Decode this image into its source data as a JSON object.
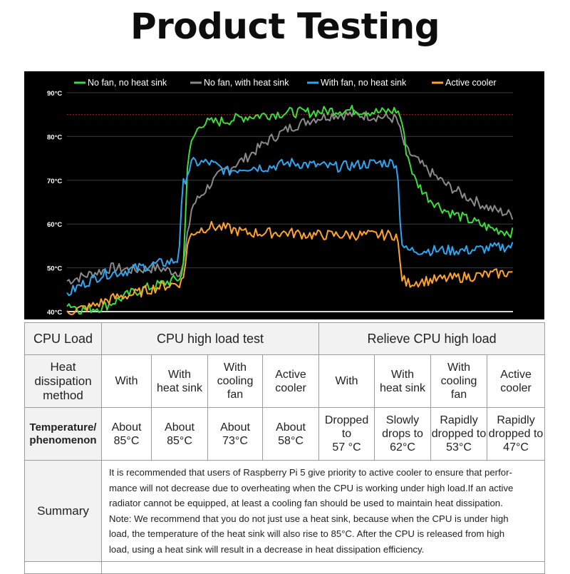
{
  "page": {
    "title": "Product Testing"
  },
  "chart_data": {
    "type": "line",
    "ylim": [
      40,
      90
    ],
    "yticks": [
      "40°C",
      "50°C",
      "60°C",
      "70°C",
      "80°C",
      "90°C"
    ],
    "threshold_line": 85,
    "grid": true,
    "legend_position": "top",
    "series": [
      {
        "name": "No fan, no heat sink",
        "color": "#3ddc3d",
        "points": [
          [
            0,
            42
          ],
          [
            3,
            40.5
          ],
          [
            8,
            41
          ],
          [
            15,
            44.5
          ],
          [
            20,
            46
          ],
          [
            25,
            47.5
          ],
          [
            26,
            48.5
          ],
          [
            27,
            73
          ],
          [
            28,
            79
          ],
          [
            30,
            83
          ],
          [
            35,
            83.5
          ],
          [
            40,
            84.5
          ],
          [
            45,
            85
          ],
          [
            50,
            85.5
          ],
          [
            55,
            85.5
          ],
          [
            60,
            86
          ],
          [
            65,
            86
          ],
          [
            70,
            85.5
          ],
          [
            74,
            86
          ],
          [
            75,
            84
          ],
          [
            76,
            77
          ],
          [
            78,
            70
          ],
          [
            81,
            66
          ],
          [
            85,
            63
          ],
          [
            90,
            61
          ],
          [
            95,
            59
          ],
          [
            100,
            58
          ]
        ]
      },
      {
        "name": "No fan, with heat sink",
        "color": "#8a8a8a",
        "points": [
          [
            0,
            47
          ],
          [
            5,
            48.5
          ],
          [
            10,
            50
          ],
          [
            15,
            49.5
          ],
          [
            20,
            50
          ],
          [
            25,
            49
          ],
          [
            26,
            50
          ],
          [
            28,
            64
          ],
          [
            32,
            69
          ],
          [
            35,
            72
          ],
          [
            40,
            75
          ],
          [
            45,
            79
          ],
          [
            50,
            82
          ],
          [
            55,
            84
          ],
          [
            60,
            85
          ],
          [
            65,
            85
          ],
          [
            70,
            84.5
          ],
          [
            74,
            84
          ],
          [
            75,
            80
          ],
          [
            76,
            77
          ],
          [
            80,
            73
          ],
          [
            85,
            69
          ],
          [
            90,
            66
          ],
          [
            95,
            63.5
          ],
          [
            100,
            62
          ]
        ]
      },
      {
        "name": "With fan, no heat sink",
        "color": "#2ea6f2",
        "points": [
          [
            0,
            44
          ],
          [
            3,
            46
          ],
          [
            8,
            48.5
          ],
          [
            12,
            49
          ],
          [
            18,
            50.5
          ],
          [
            24,
            51.5
          ],
          [
            25,
            52
          ],
          [
            26,
            69
          ],
          [
            28,
            74
          ],
          [
            32,
            74
          ],
          [
            36,
            72
          ],
          [
            40,
            73
          ],
          [
            45,
            73
          ],
          [
            50,
            74
          ],
          [
            55,
            73.5
          ],
          [
            60,
            73
          ],
          [
            65,
            73.5
          ],
          [
            70,
            74
          ],
          [
            74,
            74
          ],
          [
            75,
            56
          ],
          [
            76,
            54
          ],
          [
            80,
            54
          ],
          [
            85,
            54
          ],
          [
            90,
            54
          ],
          [
            95,
            54.5
          ],
          [
            100,
            55
          ]
        ]
      },
      {
        "name": "Active cooler",
        "color": "#ffa42a",
        "points": [
          [
            0,
            40
          ],
          [
            5,
            41
          ],
          [
            10,
            43
          ],
          [
            15,
            44
          ],
          [
            20,
            45.5
          ],
          [
            25,
            46.5
          ],
          [
            26,
            47
          ],
          [
            27,
            55
          ],
          [
            28,
            58
          ],
          [
            32,
            59.5
          ],
          [
            36,
            59
          ],
          [
            40,
            58
          ],
          [
            45,
            58
          ],
          [
            50,
            58
          ],
          [
            55,
            57.5
          ],
          [
            60,
            57.5
          ],
          [
            65,
            57.5
          ],
          [
            70,
            57.5
          ],
          [
            74,
            57.5
          ],
          [
            75,
            48
          ],
          [
            76,
            46.5
          ],
          [
            80,
            47
          ],
          [
            85,
            47.5
          ],
          [
            90,
            48
          ],
          [
            95,
            48.5
          ],
          [
            100,
            49
          ]
        ]
      }
    ]
  },
  "table": {
    "header": {
      "col0": "CPU Load",
      "group1": "CPU high load test",
      "group2": "Relieve CPU high load"
    },
    "method": {
      "label_line1": "Heat",
      "label_line2": "dissipation",
      "label_line3": "method",
      "cells": [
        [
          "With"
        ],
        [
          "With",
          "heat sink"
        ],
        [
          "With",
          "cooling",
          "fan"
        ],
        [
          "Active",
          "cooler"
        ],
        [
          "With"
        ],
        [
          "With",
          "heat sink"
        ],
        [
          "With",
          "cooling",
          "fan"
        ],
        [
          "Active",
          "cooler"
        ]
      ]
    },
    "temperature": {
      "label_line1": "Temperature/",
      "label_line2": "phenomenon",
      "cells": [
        [
          "About",
          "85°C"
        ],
        [
          "About",
          "85°C"
        ],
        [
          "About",
          "73°C"
        ],
        [
          "About",
          "58°C"
        ],
        [
          "Dropped",
          "to",
          "57 °C"
        ],
        [
          "Slowly",
          "drops to",
          "62°C"
        ],
        [
          "Rapidly",
          "dropped to",
          "53°C"
        ],
        [
          "Rapidly",
          "dropped to",
          "47°C"
        ]
      ]
    },
    "summary": {
      "label": "Summary",
      "lines": [
        "It is recommended that users of Raspberry Pi 5 give priority to active cooler to ensure that perfor-",
        "mance will not decrease due to overheating when the CPU is working under high load.If an active",
        "radiator cannot be equipped, at least a cooling fan should be used to maintain heat dissipation.",
        "Note: We recommend that you do not just use a heat sink, because when the CPU is under high",
        "load, the temperature of the heat sink will also rise to 85°C. After the CPU is released from high",
        "load, using a heat sink will result in a decrease in heat dissipation efficiency."
      ]
    }
  }
}
